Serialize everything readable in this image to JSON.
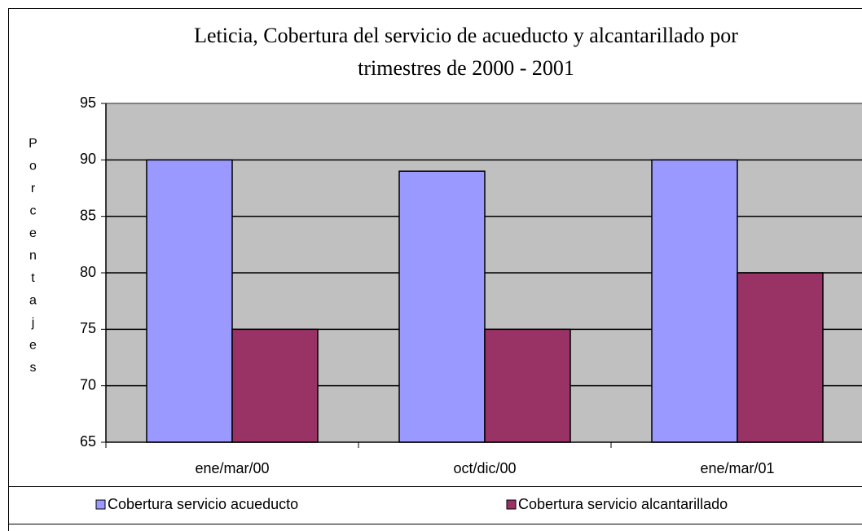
{
  "chart_data": {
    "type": "bar",
    "title": [
      "Leticia, Cobertura del servicio de acueducto y alcantarillado por",
      "trimestres de 2000 - 2001"
    ],
    "y_label": "Porcentajes",
    "categories": [
      "ene/mar/00",
      "oct/dic/00",
      "ene/mar/01"
    ],
    "series": [
      {
        "name": "Cobertura servicio acueducto",
        "color": "#9999ff",
        "values": [
          90,
          89,
          90
        ]
      },
      {
        "name": "Cobertura servicio alcantarillado",
        "color": "#993366",
        "values": [
          75,
          75,
          80
        ]
      }
    ],
    "ylim": [
      65,
      95
    ],
    "yticks": [
      65,
      70,
      75,
      80,
      85,
      90,
      95
    ],
    "grid": true,
    "legend": "bottom"
  }
}
